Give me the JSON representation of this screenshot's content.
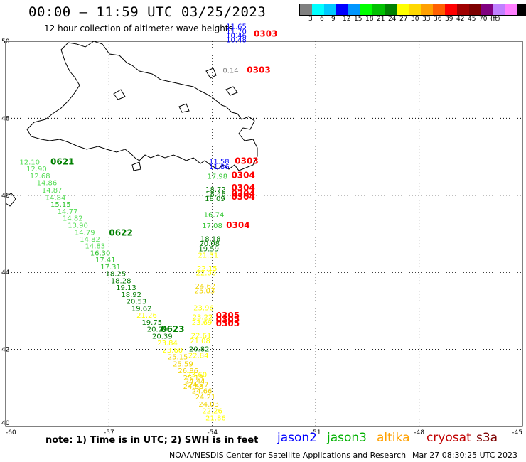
{
  "header": {
    "title": "00:00 – 11:59 UTC 03/25/2023",
    "subtitle": "12 hour collection of altimeter wave heights"
  },
  "legend": {
    "colors": [
      "#808080",
      "#00ffff",
      "#00c8ff",
      "#0000ff",
      "#0096ff",
      "#00ff00",
      "#00c000",
      "#008000",
      "#ffff00",
      "#ffd800",
      "#ffa000",
      "#ff6000",
      "#ff0000",
      "#a00000",
      "#7d0000",
      "#800080",
      "#c080ff",
      "#ff80ff",
      "#000000"
    ],
    "labels": [
      "3",
      "6",
      "9",
      "12",
      "15",
      "18",
      "21",
      "24",
      "27",
      "30",
      "33",
      "36",
      "39",
      "42",
      "45",
      "70",
      "(ft)"
    ]
  },
  "map": {
    "lon_ticks": [
      "-60",
      "-57",
      "-54",
      "-51",
      "-48",
      "-45"
    ],
    "lat_ticks": [
      "50",
      "48",
      "46",
      "44",
      "42",
      "40"
    ]
  },
  "tracks": [
    {
      "name": "jason3-0621",
      "points": [
        {
          "lon": -59.6,
          "lat": 46.8,
          "v": "12.10"
        },
        {
          "lon": -59.4,
          "lat": 46.62,
          "v": "12.90"
        },
        {
          "lon": -59.3,
          "lat": 46.44,
          "v": "12.68"
        },
        {
          "lon": -59.1,
          "lat": 46.26,
          "v": "14.86"
        },
        {
          "lon": -58.95,
          "lat": 46.07,
          "v": "14.87"
        },
        {
          "lon": -58.85,
          "lat": 45.88,
          "v": "14.84"
        },
        {
          "lon": -58.7,
          "lat": 45.7,
          "v": "15.15"
        },
        {
          "lon": -58.5,
          "lat": 45.52,
          "v": "14.77"
        },
        {
          "lon": -58.35,
          "lat": 45.34,
          "v": "14.82"
        },
        {
          "lon": -58.2,
          "lat": 45.16,
          "v": "13.90"
        },
        {
          "lon": -58.0,
          "lat": 44.97,
          "v": "14.79"
        },
        {
          "lon": -57.85,
          "lat": 44.8,
          "v": "14.82"
        },
        {
          "lon": -57.7,
          "lat": 44.62,
          "v": "14.83"
        },
        {
          "lon": -57.55,
          "lat": 44.44,
          "v": "16.30"
        },
        {
          "lon": -57.4,
          "lat": 44.26,
          "v": "17.41"
        },
        {
          "lon": -57.25,
          "lat": 44.08,
          "v": "17.31"
        },
        {
          "lon": -57.1,
          "lat": 43.9,
          "v": "18.25"
        },
        {
          "lon": -56.95,
          "lat": 43.72,
          "v": "18.28"
        },
        {
          "lon": -56.8,
          "lat": 43.54,
          "v": "19.13"
        },
        {
          "lon": -56.65,
          "lat": 43.36,
          "v": "18.92"
        },
        {
          "lon": -56.5,
          "lat": 43.18,
          "v": "20.53"
        },
        {
          "lon": -56.35,
          "lat": 43.0,
          "v": "19.62"
        },
        {
          "lon": -56.2,
          "lat": 42.82,
          "v": "21.26"
        },
        {
          "lon": -56.05,
          "lat": 42.64,
          "v": "19.75"
        },
        {
          "lon": -55.9,
          "lat": 42.46,
          "v": "20.29"
        },
        {
          "lon": -55.75,
          "lat": 42.28,
          "v": "20.39"
        },
        {
          "lon": -55.6,
          "lat": 42.1,
          "v": "23.84"
        },
        {
          "lon": -55.45,
          "lat": 41.92,
          "v": "23.60"
        },
        {
          "lon": -55.3,
          "lat": 41.74,
          "v": "25.15"
        },
        {
          "lon": -55.15,
          "lat": 41.56,
          "v": "25.59"
        },
        {
          "lon": -55.0,
          "lat": 41.38,
          "v": "26.86"
        },
        {
          "lon": -54.85,
          "lat": 41.2,
          "v": "25.13"
        },
        {
          "lon": -54.7,
          "lat": 41.02,
          "v": "24.27"
        },
        {
          "lon": -54.6,
          "lat": 40.86,
          "v": "24.66"
        },
        {
          "lon": -54.5,
          "lat": 40.7,
          "v": "24.21"
        },
        {
          "lon": -54.4,
          "lat": 40.52,
          "v": "24.03"
        },
        {
          "lon": -54.3,
          "lat": 40.34,
          "v": "22.26"
        },
        {
          "lon": -54.2,
          "lat": 40.16,
          "v": "21.86"
        }
      ],
      "dates": [
        {
          "lon": -58.7,
          "lat": 46.8,
          "v": "0621"
        },
        {
          "lon": -57.0,
          "lat": 44.95,
          "v": "0622"
        },
        {
          "lon": -55.5,
          "lat": 42.45,
          "v": "0623"
        }
      ]
    },
    {
      "name": "altika-0304",
      "points": [
        {
          "lon": -54.1,
          "lat": 46.82,
          "v": "11.58"
        },
        {
          "lon": -54.1,
          "lat": 46.68,
          "v": "11.86"
        },
        {
          "lon": -54.15,
          "lat": 46.43,
          "v": "17.98"
        },
        {
          "lon": -54.2,
          "lat": 46.09,
          "v": "18.72"
        },
        {
          "lon": -54.2,
          "lat": 45.97,
          "v": "18.46"
        },
        {
          "lon": -54.22,
          "lat": 45.85,
          "v": "18.09"
        },
        {
          "lon": -54.25,
          "lat": 45.43,
          "v": "16.74"
        },
        {
          "lon": -54.3,
          "lat": 45.15,
          "v": "17.08"
        },
        {
          "lon": -54.35,
          "lat": 44.81,
          "v": "18.18"
        },
        {
          "lon": -54.38,
          "lat": 44.69,
          "v": "20.08"
        },
        {
          "lon": -54.4,
          "lat": 44.55,
          "v": "19.59"
        },
        {
          "lon": -54.42,
          "lat": 44.38,
          "v": "21.31"
        },
        {
          "lon": -54.45,
          "lat": 44.04,
          "v": "22.15"
        },
        {
          "lon": -54.48,
          "lat": 43.92,
          "v": "22.00"
        },
        {
          "lon": -54.5,
          "lat": 43.58,
          "v": "24.62"
        },
        {
          "lon": -54.52,
          "lat": 43.46,
          "v": "25.03"
        },
        {
          "lon": -54.55,
          "lat": 43.02,
          "v": "23.96"
        },
        {
          "lon": -54.58,
          "lat": 42.78,
          "v": "23.22"
        },
        {
          "lon": -54.6,
          "lat": 42.64,
          "v": "23.69"
        },
        {
          "lon": -54.62,
          "lat": 42.3,
          "v": "22.61"
        },
        {
          "lon": -54.65,
          "lat": 42.16,
          "v": "21.08"
        },
        {
          "lon": -54.68,
          "lat": 41.95,
          "v": "20.82"
        },
        {
          "lon": -54.7,
          "lat": 41.78,
          "v": "22.84"
        },
        {
          "lon": -54.75,
          "lat": 41.28,
          "v": "23.60"
        },
        {
          "lon": -54.8,
          "lat": 41.12,
          "v": "24.44"
        },
        {
          "lon": -54.85,
          "lat": 40.98,
          "v": "24.88"
        }
      ],
      "dates": [
        {
          "lon": -53.35,
          "lat": 46.82,
          "v": "0303"
        },
        {
          "lon": -53.45,
          "lat": 46.45,
          "v": "0304"
        },
        {
          "lon": -53.45,
          "lat": 46.13,
          "v": "0304"
        },
        {
          "lon": -53.45,
          "lat": 45.97,
          "v": "0304"
        },
        {
          "lon": -53.45,
          "lat": 45.89,
          "v": "0304"
        },
        {
          "lon": -53.6,
          "lat": 45.15,
          "v": "0304"
        },
        {
          "lon": -53.9,
          "lat": 42.8,
          "v": "0305"
        },
        {
          "lon": -53.9,
          "lat": 42.7,
          "v": "0305"
        },
        {
          "lon": -53.9,
          "lat": 42.6,
          "v": "0305"
        }
      ]
    },
    {
      "name": "jason2-0303",
      "points": [
        {
          "lon": -53.6,
          "lat": 50.32,
          "v": "11.65"
        },
        {
          "lon": -53.6,
          "lat": 50.19,
          "v": "11.70"
        },
        {
          "lon": -53.6,
          "lat": 50.08,
          "v": "10.46"
        },
        {
          "lon": -53.6,
          "lat": 49.97,
          "v": "10.48"
        }
      ],
      "dates": [
        {
          "lon": -52.8,
          "lat": 50.12,
          "v": "0303"
        }
      ]
    },
    {
      "name": "cryosat-0303",
      "points": [
        {
          "lon": -53.7,
          "lat": 49.18,
          "v": "0.14"
        }
      ],
      "dates": [
        {
          "lon": -53.0,
          "lat": 49.18,
          "v": "0303"
        }
      ]
    }
  ],
  "note": "note: 1) Time is in UTC; 2) SWH is in feet",
  "satellites": [
    {
      "name": "jason2",
      "color": "#0000ff"
    },
    {
      "name": "jason3",
      "color": "#00b000"
    },
    {
      "name": "altika",
      "color": "#ffa000"
    },
    {
      "name": "cryosat",
      "color": "#c00000"
    },
    {
      "name": "s3a",
      "color": "#7d0000"
    }
  ],
  "footer": {
    "credit": "NOAA/NESDIS Center for Satellite Applications and Research",
    "timestamp": "Mar 27 08:30:25 UTC 2023"
  }
}
